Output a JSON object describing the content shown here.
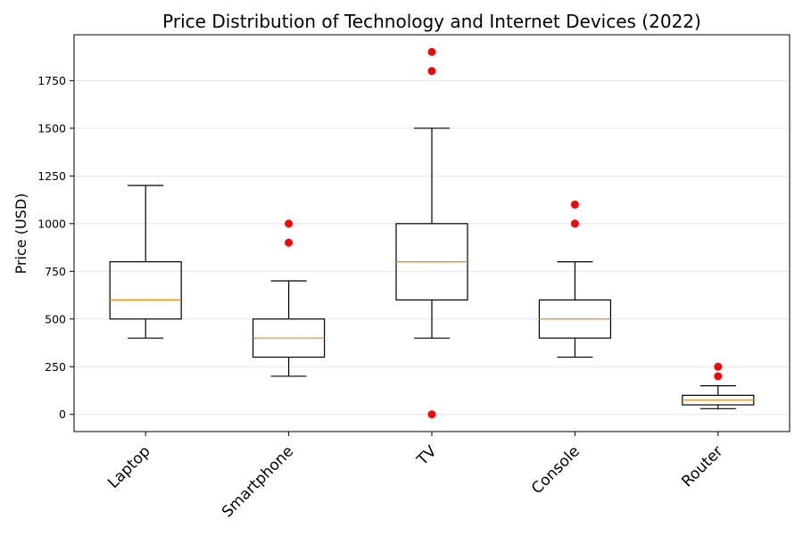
{
  "chart_data": {
    "type": "boxplot",
    "title": "Price Distribution of Technology and Internet Devices (2022)",
    "xlabel": "",
    "ylabel": "Price (USD)",
    "ylim": [
      -90,
      1990
    ],
    "yticks": [
      0,
      250,
      500,
      750,
      1000,
      1250,
      1500,
      1750
    ],
    "grid": "horizontal",
    "categories": [
      "Laptop",
      "Smartphone",
      "TV",
      "Console",
      "Router"
    ],
    "boxes": [
      {
        "category": "Laptop",
        "min": 400,
        "q1": 500,
        "median": 600,
        "q3": 800,
        "max": 1200,
        "outliers": []
      },
      {
        "category": "Smartphone",
        "min": 200,
        "q1": 300,
        "median": 400,
        "q3": 500,
        "max": 700,
        "outliers": [
          900,
          1000
        ]
      },
      {
        "category": "TV",
        "min": 400,
        "q1": 600,
        "median": 800,
        "q3": 1000,
        "max": 1500,
        "outliers": [
          1800,
          1900,
          0
        ]
      },
      {
        "category": "Console",
        "min": 300,
        "q1": 400,
        "median": 500,
        "q3": 600,
        "max": 800,
        "outliers": [
          1000,
          1100
        ]
      },
      {
        "category": "Router",
        "min": 30,
        "q1": 50,
        "median": 75,
        "q3": 100,
        "max": 150,
        "outliers": [
          200,
          250
        ]
      }
    ],
    "colors": {
      "box": "#000000",
      "median": "#ff7f0e",
      "outlier": "#ff0000",
      "grid": "#e6e6e6"
    }
  }
}
